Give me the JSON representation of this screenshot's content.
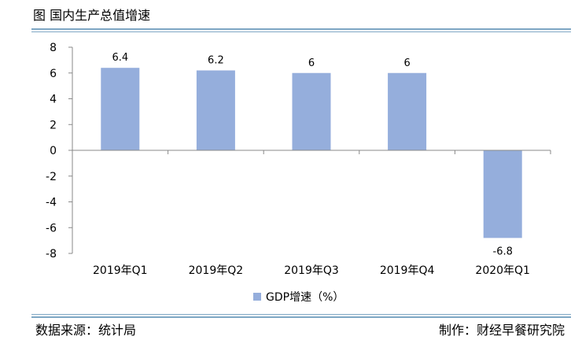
{
  "title": "图  国内生产总值增速",
  "source_text": "数据来源：统计局",
  "credit_text": "制作：财经早餐研究院",
  "chart_data": {
    "type": "bar",
    "categories": [
      "2019年Q1",
      "2019年Q2",
      "2019年Q3",
      "2019年Q4",
      "2020年Q1"
    ],
    "series": [
      {
        "name": "GDP增速（%）",
        "values": [
          6.4,
          6.2,
          6,
          6,
          -6.8
        ],
        "color": "#95aedc"
      }
    ],
    "data_labels": [
      "6.4",
      "6.2",
      "6",
      "6",
      "-6.8"
    ],
    "y_ticks": [
      "8",
      "6",
      "4",
      "2",
      "0",
      "-2",
      "-4",
      "-6",
      "-8"
    ],
    "ylim": [
      -8,
      8
    ],
    "grid": false,
    "legend_position": "bottom"
  },
  "colors": {
    "rule": "#7fa7c4",
    "bar": "#95aedc",
    "axis": "#898989"
  }
}
